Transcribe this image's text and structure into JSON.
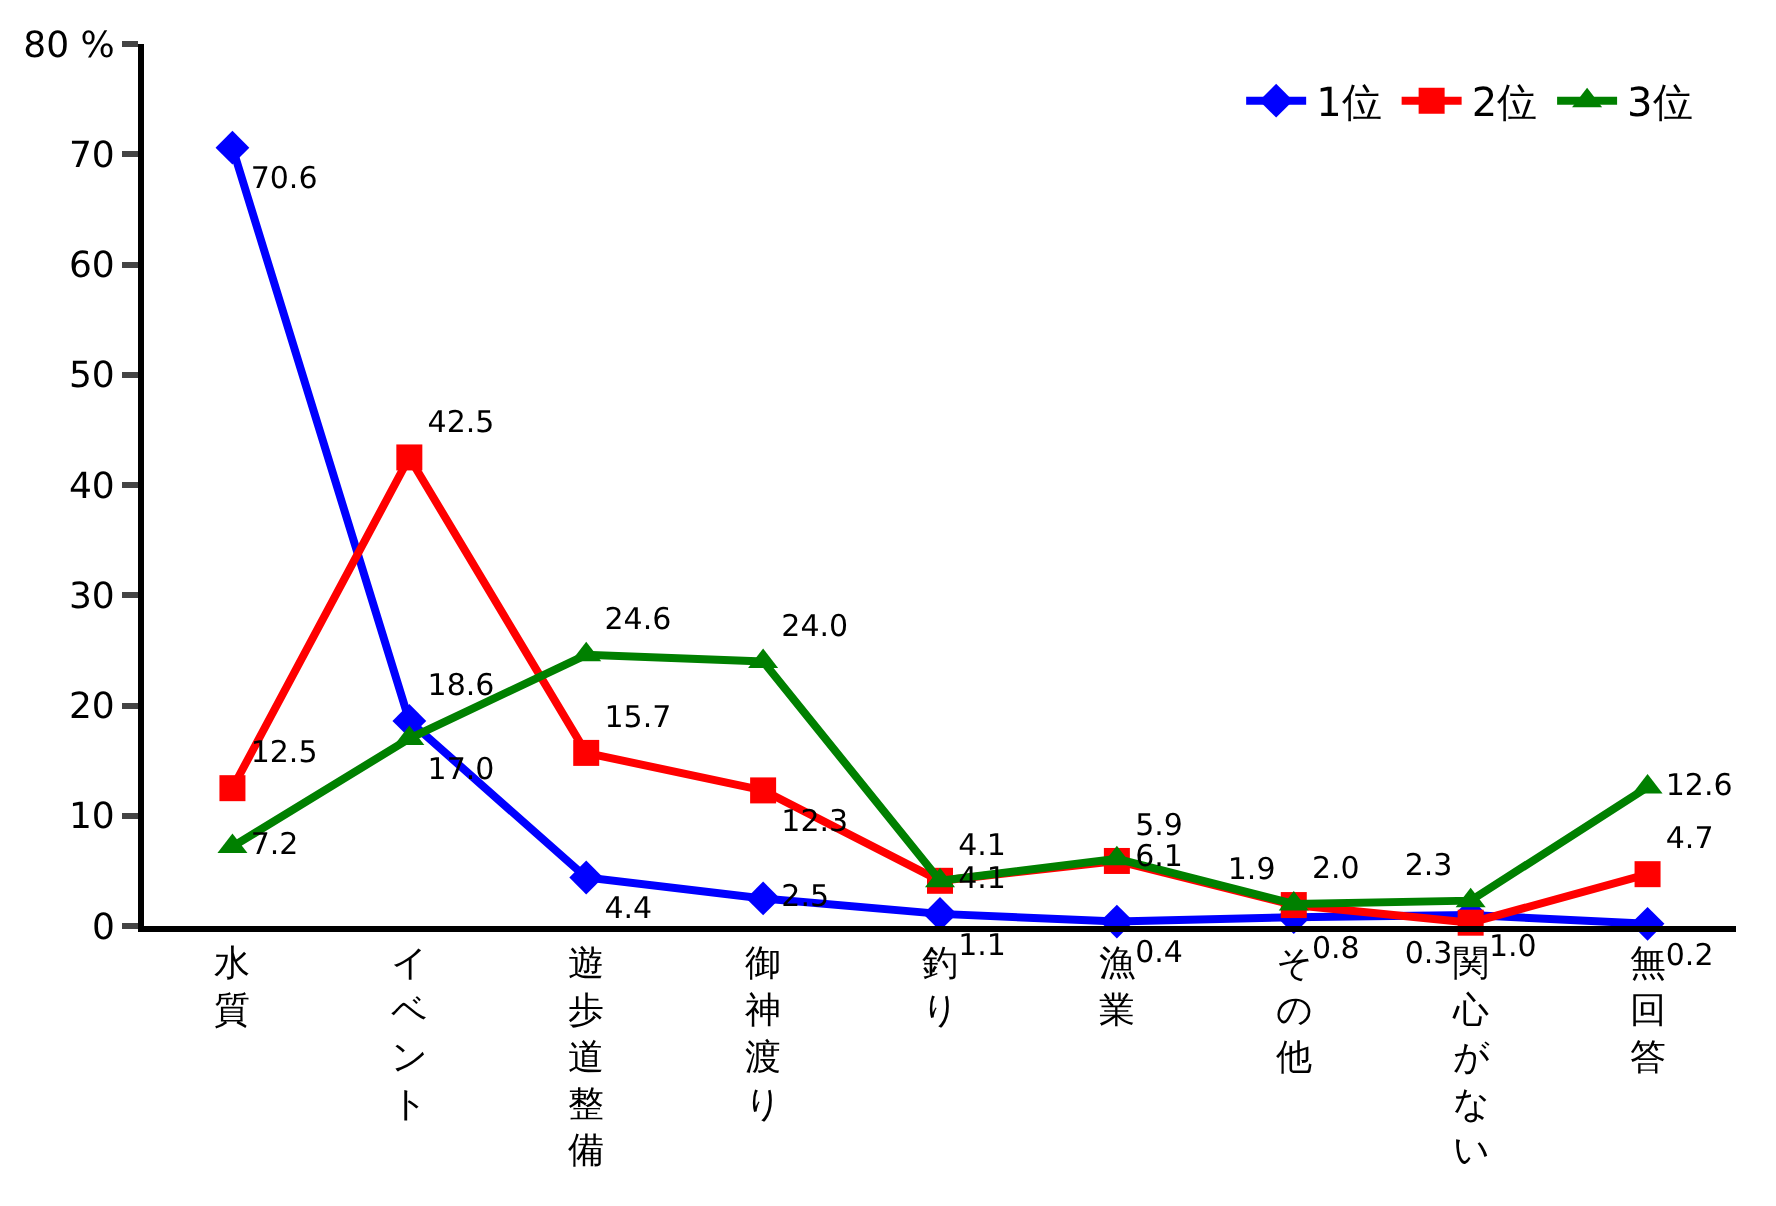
{
  "chart_data": {
    "type": "line",
    "categories": [
      "水質",
      "イベント",
      "遊歩道整備",
      "御神渡り",
      "釣り",
      "漁業",
      "その他",
      "関心がない",
      "無回答"
    ],
    "series": [
      {
        "name": "1位",
        "color": "#0000ff",
        "marker": "diamond",
        "values": [
          70.6,
          18.6,
          4.4,
          2.5,
          1.1,
          0.4,
          0.8,
          1.0,
          0.2
        ],
        "value_labels": [
          "70.6",
          "18.6",
          "4.4",
          "2.5",
          "1.1",
          "0.4",
          "0.8",
          "1.0",
          "0.2"
        ]
      },
      {
        "name": "2位",
        "color": "#ff0000",
        "marker": "square",
        "values": [
          12.5,
          42.5,
          15.7,
          12.3,
          4.1,
          5.9,
          1.9,
          0.3,
          4.7
        ],
        "value_labels": [
          "12.5",
          "42.5",
          "15.7",
          "12.3",
          "4.1",
          "5.9",
          "1.9",
          "0.3",
          "4.7"
        ]
      },
      {
        "name": "3位",
        "color": "#008000",
        "marker": "triangle",
        "values": [
          7.2,
          17.0,
          24.6,
          24.0,
          4.1,
          6.1,
          2.0,
          2.3,
          12.6
        ],
        "value_labels": [
          "7.2",
          "17.0",
          "24.6",
          "24.0",
          "4.1",
          "6.1",
          "2.0",
          "2.3",
          "12.6"
        ]
      }
    ],
    "ylim": [
      0,
      80
    ],
    "yticks": [
      0,
      10,
      20,
      30,
      40,
      50,
      60,
      70,
      {
        "value": 80,
        "label": "80 %"
      }
    ],
    "legend": "top right"
  }
}
